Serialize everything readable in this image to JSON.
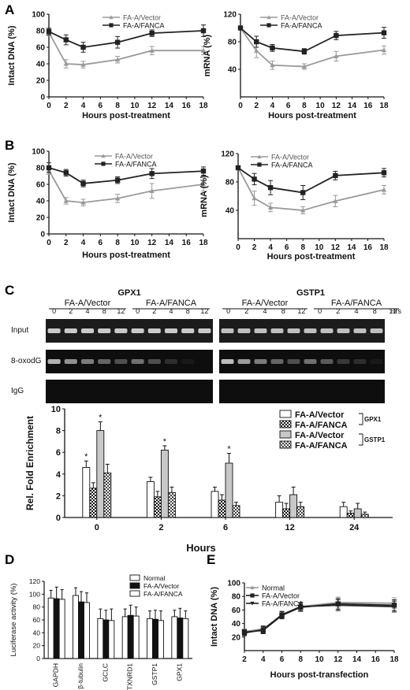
{
  "colors": {
    "vector": "#9a9a9a",
    "fanca": "#222222",
    "gel_bg": "#0e0e0e",
    "band": "#e8e8e8"
  },
  "panels": {
    "A": "A",
    "B": "B",
    "C": "C",
    "D": "D",
    "E": "E"
  },
  "gel": {
    "groups": [
      {
        "gene": "GPX1",
        "conditions": [
          "FA-A/Vector",
          "FA-A/FANCA"
        ]
      },
      {
        "gene": "GSTP1",
        "conditions": [
          "FA-A/Vector",
          "FA-A/FANCA"
        ]
      }
    ],
    "lanes": [
      "0",
      "2",
      "4",
      "8",
      "12"
    ],
    "hrs_label": "Hrs",
    "rows": [
      "Input",
      "8-oxodG",
      "IgG"
    ],
    "band_intensity": {
      "Input": [
        [
          0.85,
          0.85,
          0.85,
          0.85,
          0.85,
          0.85,
          0.85,
          0.85,
          0.85,
          0.85
        ],
        [
          0.8,
          0.8,
          0.8,
          0.8,
          0.8,
          0.8,
          0.8,
          0.8,
          0.8,
          0.8
        ]
      ],
      "8-oxodG": [
        [
          0.75,
          0.6,
          0.5,
          0.4,
          0.3,
          0.45,
          0.3,
          0.15,
          0.05,
          0.0
        ],
        [
          0.8,
          0.65,
          0.5,
          0.4,
          0.3,
          0.45,
          0.35,
          0.2,
          0.15,
          0.05
        ]
      ],
      "IgG": [
        [
          0,
          0,
          0,
          0,
          0,
          0,
          0,
          0,
          0,
          0
        ],
        [
          0,
          0,
          0,
          0,
          0,
          0,
          0,
          0,
          0,
          0
        ]
      ]
    }
  },
  "chart_data": [
    {
      "panel": "A-left",
      "type": "line",
      "xlabel": "Hours post-treatment",
      "ylabel": "Intact DNA (%)",
      "xlim": [
        0,
        18
      ],
      "ylim": [
        0,
        100
      ],
      "xticks": [
        0,
        2,
        4,
        6,
        8,
        10,
        12,
        14,
        16,
        18
      ],
      "yticks": [
        0,
        20,
        40,
        60,
        80,
        100
      ],
      "legend": "top-right",
      "series": [
        {
          "name": "FA-A/Vector",
          "x": [
            0,
            2,
            4,
            8,
            12,
            18
          ],
          "y": [
            78,
            40,
            39,
            45,
            56,
            56
          ],
          "err": [
            4,
            5,
            4,
            4,
            5,
            5
          ],
          "marker": "triangle",
          "color": "#9a9a9a"
        },
        {
          "name": "FA-A/FANCA",
          "x": [
            0,
            2,
            4,
            8,
            12,
            18
          ],
          "y": [
            79,
            69,
            60,
            66,
            77,
            80
          ],
          "err": [
            4,
            6,
            6,
            7,
            4,
            7
          ],
          "marker": "square",
          "color": "#222222"
        }
      ]
    },
    {
      "panel": "A-right",
      "type": "line",
      "xlabel": "Hours post-treatment",
      "ylabel": "mRNA (%)",
      "xlim": [
        0,
        18
      ],
      "ylim": [
        0,
        120
      ],
      "xticks": [
        0,
        2,
        4,
        6,
        8,
        10,
        12,
        14,
        16,
        18
      ],
      "yticks": [
        40,
        80,
        120
      ],
      "legend": "top-right",
      "series": [
        {
          "name": "FA-A/Vector",
          "x": [
            0,
            2,
            4,
            8,
            12,
            18
          ],
          "y": [
            100,
            67,
            46,
            44,
            59,
            68
          ],
          "err": [
            2,
            10,
            6,
            4,
            7,
            6
          ],
          "marker": "triangle",
          "color": "#9a9a9a"
        },
        {
          "name": "FA-A/FANCA",
          "x": [
            0,
            2,
            4,
            8,
            12,
            18
          ],
          "y": [
            100,
            80,
            71,
            66,
            89,
            93
          ],
          "err": [
            2,
            8,
            5,
            4,
            6,
            8
          ],
          "marker": "square",
          "color": "#222222"
        }
      ]
    },
    {
      "panel": "B-left",
      "type": "line",
      "xlabel": "Hours post-treatment",
      "ylabel": "Intact DNA (%)",
      "xlim": [
        0,
        18
      ],
      "ylim": [
        0,
        100
      ],
      "xticks": [
        0,
        2,
        4,
        6,
        8,
        10,
        12,
        14,
        16,
        18
      ],
      "yticks": [
        0,
        20,
        40,
        60,
        80,
        100
      ],
      "legend": "top-right",
      "series": [
        {
          "name": "FA-A/Vector",
          "x": [
            0,
            2,
            4,
            8,
            12,
            18
          ],
          "y": [
            77,
            40,
            38,
            43,
            52,
            60
          ],
          "err": [
            5,
            4,
            4,
            5,
            9,
            8
          ],
          "marker": "triangle",
          "color": "#9a9a9a"
        },
        {
          "name": "FA-A/FANCA",
          "x": [
            0,
            2,
            4,
            8,
            12,
            18
          ],
          "y": [
            80,
            74,
            61,
            65,
            73,
            76
          ],
          "err": [
            6,
            4,
            4,
            4,
            6,
            5
          ],
          "marker": "square",
          "color": "#222222"
        }
      ]
    },
    {
      "panel": "B-right",
      "type": "line",
      "xlabel": "Hours post-treatment",
      "ylabel": "mRNA (%)",
      "xlim": [
        0,
        18
      ],
      "ylim": [
        0,
        120
      ],
      "xticks": [
        0,
        2,
        4,
        6,
        8,
        10,
        12,
        14,
        16,
        18
      ],
      "yticks": [
        40,
        80,
        120
      ],
      "legend": "top-right",
      "series": [
        {
          "name": "FA-A/Vector",
          "x": [
            0,
            2,
            4,
            8,
            12,
            18
          ],
          "y": [
            100,
            57,
            44,
            40,
            53,
            69
          ],
          "err": [
            2,
            10,
            6,
            5,
            8,
            6
          ],
          "marker": "triangle",
          "color": "#9a9a9a"
        },
        {
          "name": "FA-A/FANCA",
          "x": [
            0,
            2,
            4,
            8,
            12,
            18
          ],
          "y": [
            100,
            84,
            72,
            65,
            89,
            93
          ],
          "err": [
            2,
            8,
            10,
            10,
            6,
            6
          ],
          "marker": "square",
          "color": "#222222"
        }
      ]
    },
    {
      "panel": "C-bars",
      "type": "bar",
      "xlabel": "Hours",
      "ylabel": "Rel. Fold Enrichment",
      "ylim": [
        0,
        10
      ],
      "yticks": [
        0,
        2,
        4,
        6,
        8,
        10
      ],
      "categories": [
        "0",
        "2",
        "6",
        "12",
        "24"
      ],
      "legend": "top-right",
      "legend_groups": [
        "GPX1",
        "GSTP1"
      ],
      "series": [
        {
          "name": "FA-A/Vector",
          "gene": "GPX1",
          "fill": "white",
          "values": [
            4.6,
            3.3,
            2.4,
            1.4,
            1.0
          ],
          "err": [
            0.6,
            0.4,
            0.4,
            0.6,
            0.4
          ],
          "sig": [
            true,
            false,
            false,
            false,
            false
          ]
        },
        {
          "name": "FA-A/FANCA",
          "gene": "GPX1",
          "fill": "check",
          "values": [
            2.7,
            1.9,
            1.6,
            0.8,
            0.4
          ],
          "err": [
            0.5,
            0.5,
            0.5,
            0.5,
            0.2
          ],
          "sig": [
            false,
            false,
            false,
            false,
            false
          ]
        },
        {
          "name": "FA-A/Vector",
          "gene": "GSTP1",
          "fill": "gray",
          "values": [
            8.0,
            6.2,
            5.0,
            2.1,
            0.8
          ],
          "err": [
            0.8,
            0.4,
            0.9,
            0.7,
            0.5
          ],
          "sig": [
            true,
            true,
            true,
            false,
            false
          ]
        },
        {
          "name": "FA-A/FANCA",
          "gene": "GSTP1",
          "fill": "check2",
          "values": [
            4.1,
            2.3,
            1.1,
            1.0,
            0.3
          ],
          "err": [
            0.8,
            0.5,
            0.3,
            0.4,
            0.2
          ],
          "sig": [
            false,
            false,
            false,
            false,
            false
          ]
        }
      ],
      "sig_marker": "*"
    },
    {
      "panel": "D",
      "type": "bar",
      "xlabel": "",
      "ylabel": "Luciferase activity (%)",
      "ylim": [
        0,
        120
      ],
      "yticks": [
        0,
        20,
        40,
        60,
        80,
        100,
        120
      ],
      "categories": [
        "GAPDH",
        "β-tubulin",
        "GCLC",
        "TXNRD1",
        "GSTP1",
        "GPX1"
      ],
      "legend": "top-right",
      "series": [
        {
          "name": "Normal",
          "fill": "white",
          "values": [
            94,
            98,
            62,
            65,
            62,
            65
          ],
          "err": [
            12,
            12,
            15,
            12,
            12,
            10
          ]
        },
        {
          "name": "FA-A/Vector",
          "fill": "black",
          "values": [
            93,
            88,
            60,
            67,
            61,
            63
          ],
          "err": [
            18,
            16,
            15,
            16,
            14,
            15
          ]
        },
        {
          "name": "FA-A/FANCA",
          "fill": "white",
          "values": [
            92,
            87,
            59,
            66,
            59,
            62
          ],
          "err": [
            15,
            15,
            18,
            14,
            15,
            12
          ]
        }
      ]
    },
    {
      "panel": "E",
      "type": "line",
      "xlabel": "Hours post-transfection",
      "ylabel": "Intact DNA (%)",
      "xlim": [
        2,
        18
      ],
      "ylim": [
        0,
        100
      ],
      "xticks": [
        2,
        4,
        6,
        8,
        10,
        12,
        14,
        16,
        18
      ],
      "yticks": [
        20,
        40,
        60,
        80,
        100
      ],
      "legend": "top-left",
      "series": [
        {
          "name": "Normal",
          "x": [
            2,
            4,
            6,
            8,
            12,
            18
          ],
          "y": [
            28,
            32,
            52,
            65,
            71,
            70
          ],
          "err": [
            4,
            5,
            5,
            6,
            8,
            8
          ],
          "marker": "triangle",
          "color": "#9a9a9a"
        },
        {
          "name": "FA-A/Vector",
          "x": [
            2,
            4,
            6,
            8,
            12,
            18
          ],
          "y": [
            27,
            30,
            52,
            64,
            69,
            67
          ],
          "err": [
            4,
            5,
            5,
            6,
            8,
            8
          ],
          "marker": "square",
          "color": "#222222"
        },
        {
          "name": "FA-A/FANCA",
          "x": [
            2,
            4,
            6,
            8,
            12,
            18
          ],
          "y": [
            26,
            31,
            53,
            65,
            67,
            65
          ],
          "err": [
            4,
            5,
            5,
            6,
            8,
            8
          ],
          "marker": "triangle-down",
          "color": "#222222"
        }
      ]
    }
  ]
}
